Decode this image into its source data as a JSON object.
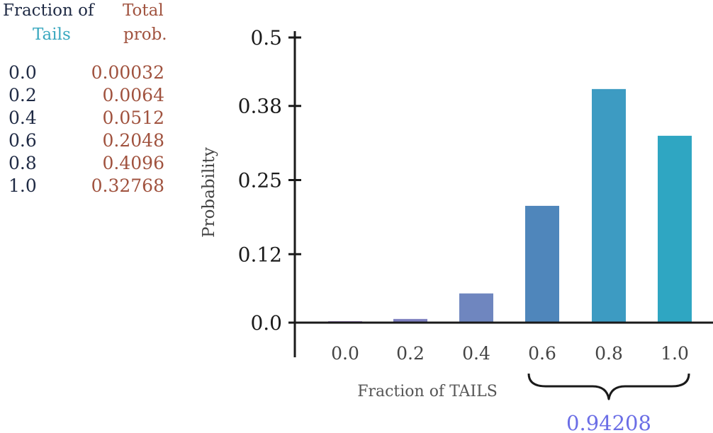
{
  "table": {
    "header_col1_line1": "Fraction of",
    "header_col1_line2": "Tails",
    "header_col2_line1": "Total",
    "header_col2_line2": "prob.",
    "rows": [
      {
        "fraction": "0.0",
        "prob": "0.00032"
      },
      {
        "fraction": "0.2",
        "prob": "0.0064"
      },
      {
        "fraction": "0.4",
        "prob": "0.0512"
      },
      {
        "fraction": "0.6",
        "prob": "0.2048"
      },
      {
        "fraction": "0.8",
        "prob": "0.4096"
      },
      {
        "fraction": "1.0",
        "prob": "0.32768"
      }
    ]
  },
  "chart_data": {
    "type": "bar",
    "categories": [
      "0.0",
      "0.2",
      "0.4",
      "0.6",
      "0.8",
      "1.0"
    ],
    "values": [
      0.00032,
      0.0064,
      0.0512,
      0.2048,
      0.4096,
      0.32768
    ],
    "xlabel": "Fraction of TAILS",
    "ylabel": "Probability",
    "yticks": [
      "0.0",
      "0.12",
      "0.25",
      "0.38",
      "0.5"
    ],
    "ylim": [
      0,
      0.5
    ],
    "grid": false,
    "bar_colors": [
      "#9c7fc4",
      "#7d7fbf",
      "#6f86bf",
      "#4f86bb",
      "#3d9bc2",
      "#2fa6c2"
    ],
    "brace_label": "0.94208",
    "brace_label_color": "#6b6ee6"
  },
  "colors": {
    "header_col1": "#1f2a44",
    "header_col1_accent": "#3aa8bf",
    "header_col2": "#a0523e",
    "axis": "#1a1a1a"
  }
}
